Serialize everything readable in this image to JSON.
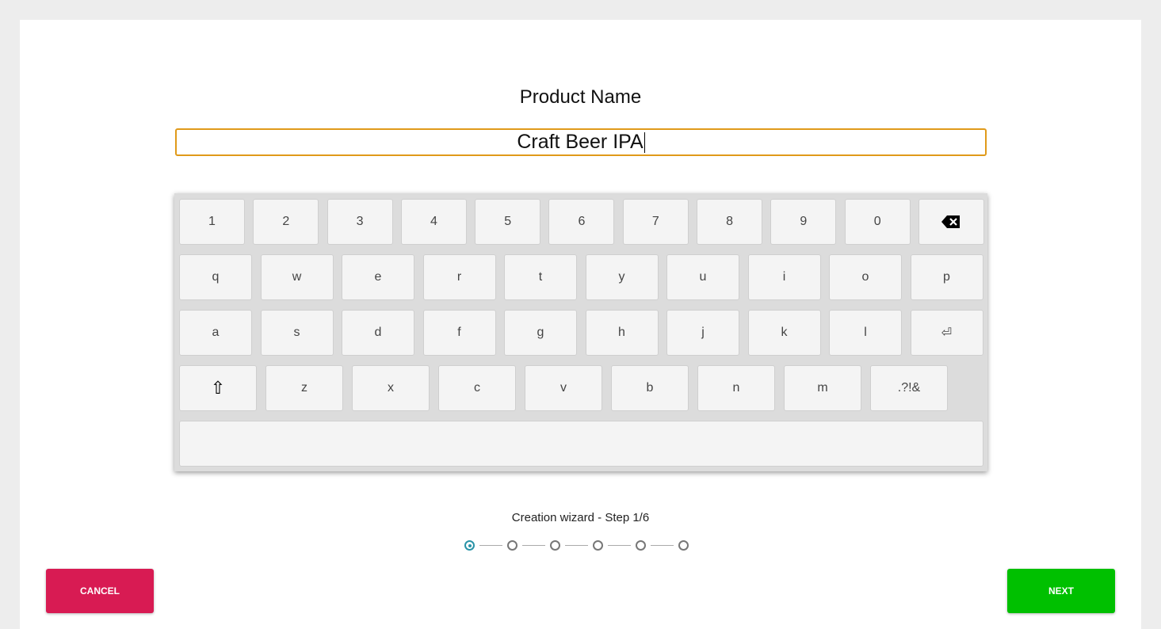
{
  "title": "Product Name",
  "input": {
    "value": "Craft Beer IPA"
  },
  "keyboard": {
    "row1": [
      "1",
      "2",
      "3",
      "4",
      "5",
      "6",
      "7",
      "8",
      "9",
      "0"
    ],
    "row2": [
      "q",
      "w",
      "e",
      "r",
      "t",
      "y",
      "u",
      "i",
      "o",
      "p"
    ],
    "row3": [
      "a",
      "s",
      "d",
      "f",
      "g",
      "h",
      "j",
      "k",
      "l"
    ],
    "row4": [
      "z",
      "x",
      "c",
      "v",
      "b",
      "n",
      "m",
      ".?!&"
    ],
    "enter_glyph": "⏎",
    "shift_glyph": "⇧"
  },
  "wizard": {
    "label": "Creation wizard - Step 1/6",
    "current": 1,
    "total": 6
  },
  "buttons": {
    "cancel": "CANCEL",
    "next": "NEXT"
  },
  "colors": {
    "cancel": "#d81b53",
    "next": "#00c000",
    "accent": "#2a94a8",
    "input_border": "#e09a1a"
  }
}
